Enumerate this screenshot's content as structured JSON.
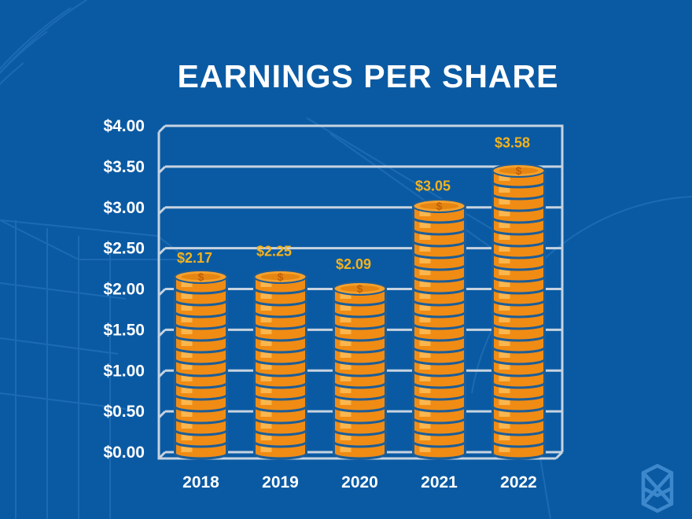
{
  "chart_data": {
    "type": "bar",
    "title": "EARNINGS PER SHARE",
    "categories": [
      "2018",
      "2019",
      "2020",
      "2021",
      "2022"
    ],
    "values": [
      2.17,
      2.25,
      2.09,
      3.05,
      3.58
    ],
    "value_labels": [
      "$2.17",
      "$2.25",
      "$2.09",
      "$3.05",
      "$3.58"
    ],
    "y_tick_labels": [
      "$0.00",
      "$0.50",
      "$1.00",
      "$1.50",
      "$2.00",
      "$2.50",
      "$3.00",
      "$3.50",
      "$4.00"
    ],
    "y_ticks": [
      0,
      0.5,
      1,
      1.5,
      2,
      2.5,
      3,
      3.5,
      4
    ],
    "ylim": [
      0,
      4
    ],
    "xlabel": "",
    "ylabel": "",
    "grid": true,
    "legend": "none",
    "bar_style": "stacked gold coins with dollar sign",
    "colors": {
      "background": "#0a5aa3",
      "coin": "#f39a1e",
      "coin_highlight": "#ffd27a",
      "label": "#f3b21d",
      "text": "#ffffff",
      "grid": "#c7d3e0"
    }
  },
  "watermark": {
    "icon": "knot-logo-icon"
  }
}
